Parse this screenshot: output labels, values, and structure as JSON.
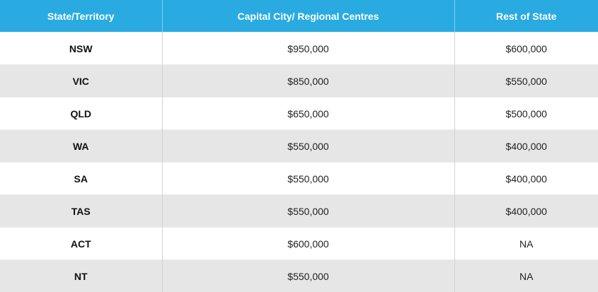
{
  "table": {
    "headers": [
      "State/Territory",
      "Capital City/ Regional Centres",
      "Rest of State"
    ],
    "rows": [
      [
        "NSW",
        "$950,000",
        "$600,000"
      ],
      [
        "VIC",
        "$850,000",
        "$550,000"
      ],
      [
        "QLD",
        "$650,000",
        "$500,000"
      ],
      [
        "WA",
        "$550,000",
        "$400,000"
      ],
      [
        "SA",
        "$550,000",
        "$400,000"
      ],
      [
        "TAS",
        "$550,000",
        "$400,000"
      ],
      [
        "ACT",
        "$600,000",
        "NA"
      ],
      [
        "NT",
        "$550,000",
        "NA"
      ]
    ]
  },
  "colors": {
    "header_bg": "#29abe2",
    "header_text": "#ffffff",
    "row_alt_bg": "#e6e6e6"
  }
}
